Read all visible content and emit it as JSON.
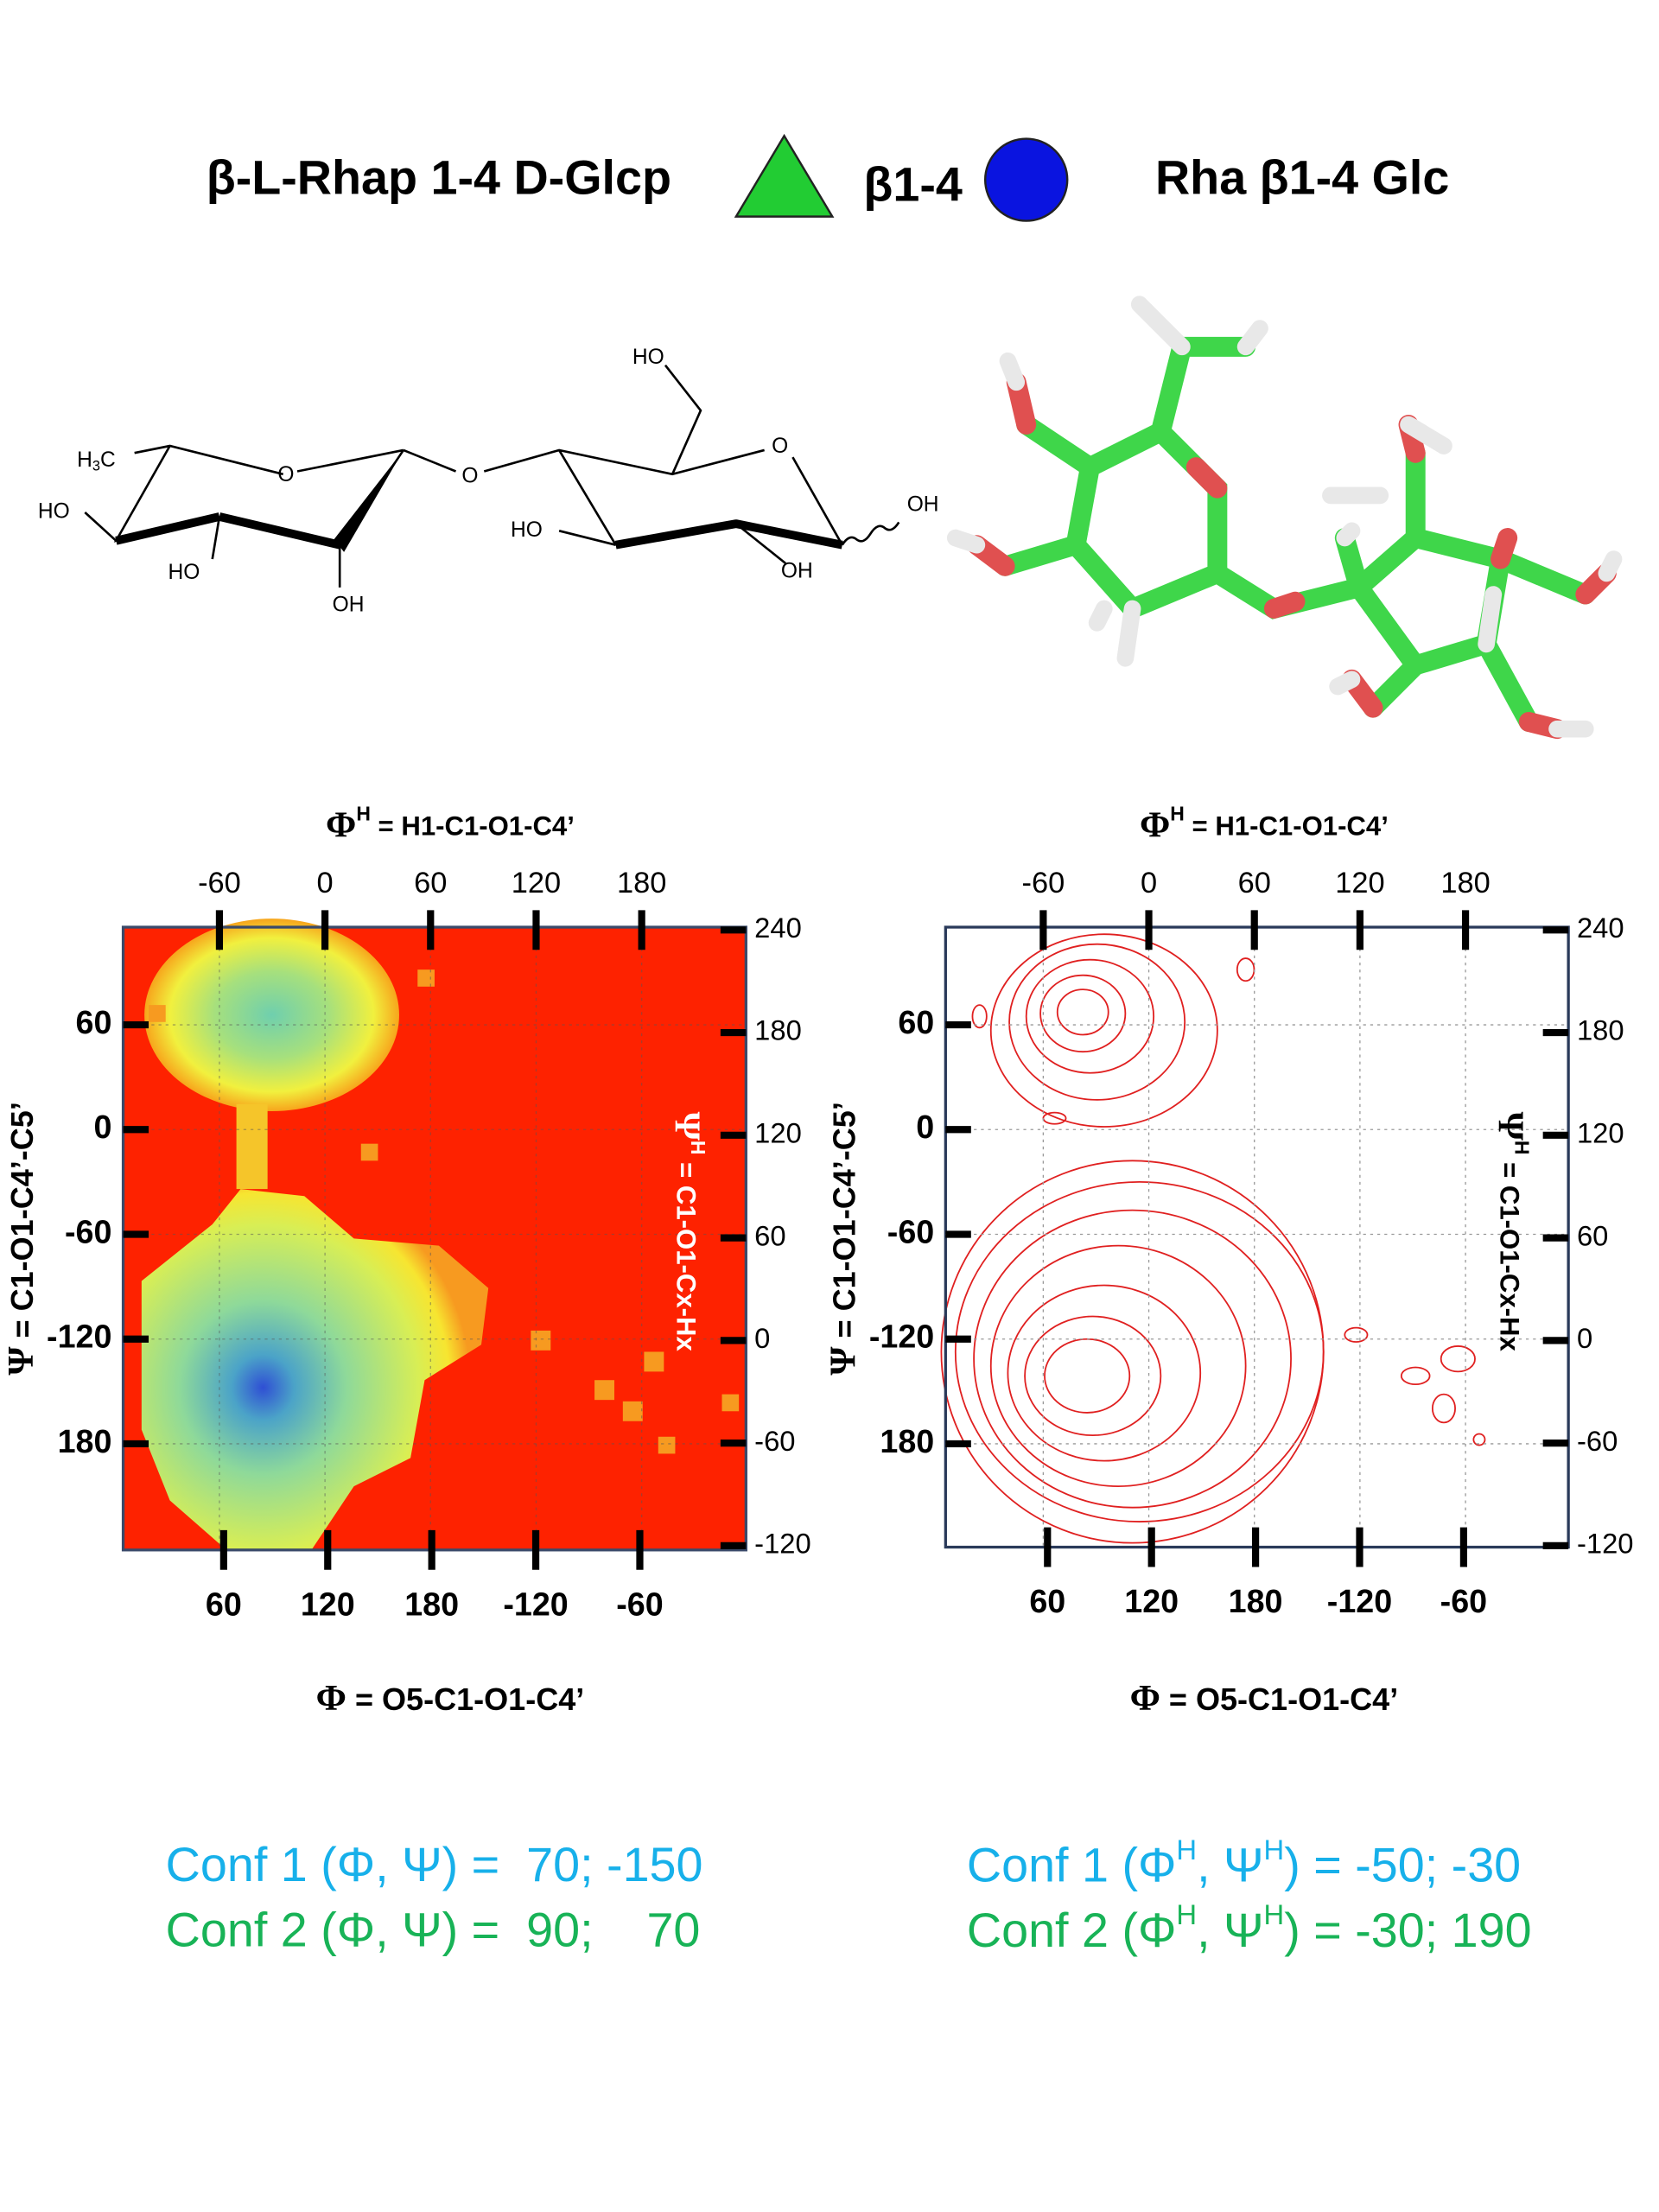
{
  "header": {
    "left": "β-L-Rhap 1-4 D-Glcp",
    "linkage": "β1-4",
    "right": "Rha β1-4 Glc"
  },
  "structure": {
    "methyl": {
      "main": "H",
      "sub": "3",
      "end": "C"
    },
    "labels": [
      "O",
      "HO",
      "HO",
      "OH",
      "O",
      "HO",
      "O",
      "HO",
      "OH",
      "OH"
    ]
  },
  "plots": [
    {
      "top_axis": {
        "symbol": "Φ",
        "sup": "H",
        "text": " = H1-C1-O1-C4’",
        "ticks": [
          -60,
          0,
          60,
          120,
          180
        ]
      },
      "left_axis": {
        "symbol": "Ψ",
        "text": " = C1-O1-C4’-C5’",
        "ticks": [
          60,
          0,
          -60,
          -120,
          180
        ]
      },
      "right_axis": {
        "symbol": "Ψ",
        "sup": "H",
        "text": " = C1-O1-Cx-Hx",
        "ticks": [
          240,
          180,
          120,
          60,
          0,
          -60,
          -120
        ]
      },
      "bottom_axis": {
        "symbol": "Φ",
        "text": " = O5-C1-O1-C4’",
        "ticks": [
          60,
          120,
          180,
          -120,
          -60
        ]
      }
    },
    {
      "top_axis": {
        "symbol": "Φ",
        "sup": "H",
        "text": " = H1-C1-O1-C4’",
        "ticks": [
          -60,
          0,
          60,
          120,
          180
        ]
      },
      "left_axis": {
        "symbol": "Ψ",
        "text": " = C1-O1-C4’-C5’",
        "ticks": [
          60,
          0,
          -60,
          -120,
          180
        ]
      },
      "right_axis": {
        "symbol": "Ψ",
        "sup": "H",
        "text": " = C1-O1-Cx-Hx",
        "ticks": [
          240,
          180,
          120,
          60,
          0,
          -60,
          -120
        ]
      },
      "bottom_axis": {
        "symbol": "Φ",
        "text": " = O5-C1-O1-C4’",
        "ticks": [
          60,
          120,
          180,
          -120,
          -60
        ]
      }
    }
  ],
  "conformations": {
    "left": [
      "Conf 1 (Φ, Ψ) =  70; -150",
      "Conf 2 (Φ, Ψ) =  90;    70"
    ],
    "right": [
      [
        "Conf 1 (Φ",
        "H",
        ", Ψ",
        "H",
        ") = -50; -30"
      ],
      [
        "Conf 2 (Φ",
        "H",
        ", Ψ",
        "H",
        ") = -30; 190"
      ]
    ]
  }
}
